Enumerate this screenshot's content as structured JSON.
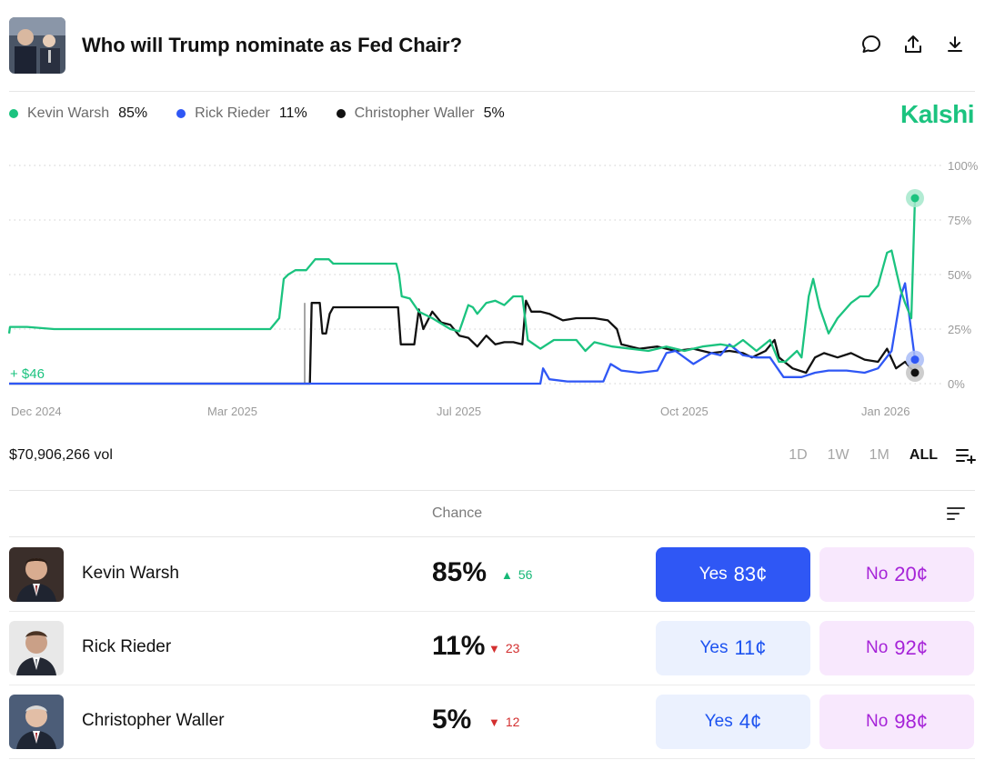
{
  "header": {
    "title": "Who will Trump nominate as Fed Chair?",
    "icons": [
      "comment-icon",
      "share-icon",
      "download-icon"
    ]
  },
  "legend": [
    {
      "name": "Kevin Warsh",
      "value": "85%",
      "color": "#1bc37f"
    },
    {
      "name": "Rick Rieder",
      "value": "11%",
      "color": "#2f57f5"
    },
    {
      "name": "Christopher Waller",
      "value": "5%",
      "color": "#111111"
    }
  ],
  "brand": "Kalshi",
  "chart_data": {
    "type": "line",
    "x_ticks": [
      "Dec 2024",
      "Mar 2025",
      "Jul 2025",
      "Oct 2025",
      "Jan 2026"
    ],
    "y_ticks": [
      "100%",
      "75%",
      "50%",
      "25%",
      "0%"
    ],
    "ylim": [
      0,
      100
    ],
    "grid": true,
    "annotation": "+ $46",
    "series": [
      {
        "name": "Kevin Warsh",
        "color": "#1bc37f",
        "points": [
          [
            0,
            23
          ],
          [
            1,
            26
          ],
          [
            20,
            26
          ],
          [
            50,
            25
          ],
          [
            120,
            25
          ],
          [
            200,
            25
          ],
          [
            260,
            25
          ],
          [
            290,
            25
          ],
          [
            300,
            30
          ],
          [
            305,
            48
          ],
          [
            310,
            50
          ],
          [
            318,
            52
          ],
          [
            330,
            52
          ],
          [
            340,
            57
          ],
          [
            355,
            57
          ],
          [
            360,
            55
          ],
          [
            400,
            55
          ],
          [
            430,
            55
          ],
          [
            433,
            50
          ],
          [
            436,
            40
          ],
          [
            445,
            39
          ],
          [
            455,
            33
          ],
          [
            470,
            30
          ],
          [
            490,
            25
          ],
          [
            500,
            24
          ],
          [
            510,
            36
          ],
          [
            515,
            35
          ],
          [
            520,
            32
          ],
          [
            530,
            37
          ],
          [
            540,
            38
          ],
          [
            550,
            36
          ],
          [
            560,
            40
          ],
          [
            570,
            40
          ],
          [
            576,
            20
          ],
          [
            590,
            16
          ],
          [
            605,
            20
          ],
          [
            615,
            20
          ],
          [
            630,
            20
          ],
          [
            640,
            15
          ],
          [
            650,
            19
          ],
          [
            670,
            17
          ],
          [
            690,
            16
          ],
          [
            710,
            15
          ],
          [
            730,
            17
          ],
          [
            750,
            15
          ],
          [
            770,
            17
          ],
          [
            790,
            18
          ],
          [
            805,
            17
          ],
          [
            815,
            20
          ],
          [
            830,
            15
          ],
          [
            845,
            20
          ],
          [
            855,
            10
          ],
          [
            862,
            10
          ],
          [
            875,
            15
          ],
          [
            880,
            12
          ],
          [
            888,
            40
          ],
          [
            893,
            48
          ],
          [
            900,
            35
          ],
          [
            910,
            23
          ],
          [
            920,
            30
          ],
          [
            935,
            37
          ],
          [
            945,
            40
          ],
          [
            955,
            40
          ],
          [
            965,
            45
          ],
          [
            975,
            60
          ],
          [
            980,
            61
          ],
          [
            985,
            52
          ],
          [
            990,
            43
          ],
          [
            995,
            37
          ],
          [
            1002,
            30
          ],
          [
            1006,
            85
          ]
        ]
      },
      {
        "name": "Rick Rieder",
        "color": "#2f57f5",
        "points": [
          [
            0,
            0
          ],
          [
            590,
            0
          ],
          [
            593,
            7
          ],
          [
            600,
            2
          ],
          [
            620,
            1
          ],
          [
            640,
            1
          ],
          [
            660,
            1
          ],
          [
            668,
            9
          ],
          [
            680,
            6
          ],
          [
            700,
            5
          ],
          [
            720,
            6
          ],
          [
            730,
            14
          ],
          [
            740,
            15
          ],
          [
            760,
            9
          ],
          [
            780,
            14
          ],
          [
            790,
            13
          ],
          [
            800,
            18
          ],
          [
            815,
            13
          ],
          [
            830,
            12
          ],
          [
            845,
            12
          ],
          [
            860,
            3
          ],
          [
            880,
            3
          ],
          [
            895,
            5
          ],
          [
            910,
            6
          ],
          [
            930,
            6
          ],
          [
            950,
            5
          ],
          [
            965,
            7
          ],
          [
            980,
            15
          ],
          [
            990,
            40
          ],
          [
            995,
            46
          ],
          [
            1000,
            30
          ],
          [
            1006,
            11
          ]
        ]
      },
      {
        "name": "Christopher Waller",
        "color": "#111111",
        "points": [
          [
            0,
            0
          ],
          [
            334,
            0
          ],
          [
            336,
            37
          ],
          [
            345,
            37
          ],
          [
            348,
            23
          ],
          [
            352,
            23
          ],
          [
            356,
            32
          ],
          [
            360,
            35
          ],
          [
            420,
            35
          ],
          [
            432,
            35
          ],
          [
            435,
            18
          ],
          [
            440,
            18
          ],
          [
            450,
            18
          ],
          [
            455,
            34
          ],
          [
            460,
            25
          ],
          [
            470,
            33
          ],
          [
            480,
            28
          ],
          [
            490,
            27
          ],
          [
            500,
            22
          ],
          [
            510,
            21
          ],
          [
            520,
            17
          ],
          [
            530,
            22
          ],
          [
            540,
            18
          ],
          [
            550,
            19
          ],
          [
            560,
            19
          ],
          [
            570,
            18
          ],
          [
            574,
            38
          ],
          [
            580,
            33
          ],
          [
            590,
            33
          ],
          [
            600,
            32
          ],
          [
            615,
            29
          ],
          [
            630,
            30
          ],
          [
            650,
            30
          ],
          [
            665,
            29
          ],
          [
            675,
            25
          ],
          [
            680,
            18
          ],
          [
            700,
            16
          ],
          [
            720,
            17
          ],
          [
            740,
            15
          ],
          [
            760,
            16
          ],
          [
            780,
            14
          ],
          [
            800,
            15
          ],
          [
            815,
            14
          ],
          [
            825,
            12
          ],
          [
            840,
            15
          ],
          [
            850,
            20
          ],
          [
            855,
            12
          ],
          [
            870,
            7
          ],
          [
            885,
            5
          ],
          [
            895,
            12
          ],
          [
            905,
            14
          ],
          [
            920,
            12
          ],
          [
            935,
            14
          ],
          [
            950,
            11
          ],
          [
            965,
            10
          ],
          [
            975,
            16
          ],
          [
            985,
            7
          ],
          [
            995,
            10
          ],
          [
            1006,
            5
          ]
        ]
      }
    ]
  },
  "volume": "$70,906,266 vol",
  "ranges": [
    {
      "label": "1D",
      "active": false
    },
    {
      "label": "1W",
      "active": false
    },
    {
      "label": "1M",
      "active": false
    },
    {
      "label": "ALL",
      "active": true
    }
  ],
  "table": {
    "chance_label": "Chance",
    "rows": [
      {
        "name": "Kevin Warsh",
        "chance": "85%",
        "change": "56",
        "direction": "up",
        "yes_label": "Yes",
        "yes_price": "83¢",
        "no_label": "No",
        "no_price": "20¢"
      },
      {
        "name": "Rick Rieder",
        "chance": "11%",
        "change": "23",
        "direction": "down",
        "yes_label": "Yes",
        "yes_price": "11¢",
        "no_label": "No",
        "no_price": "92¢"
      },
      {
        "name": "Christopher Waller",
        "chance": "5%",
        "change": "12",
        "direction": "down",
        "yes_label": "Yes",
        "yes_price": "4¢",
        "no_label": "No",
        "no_price": "98¢"
      }
    ]
  }
}
